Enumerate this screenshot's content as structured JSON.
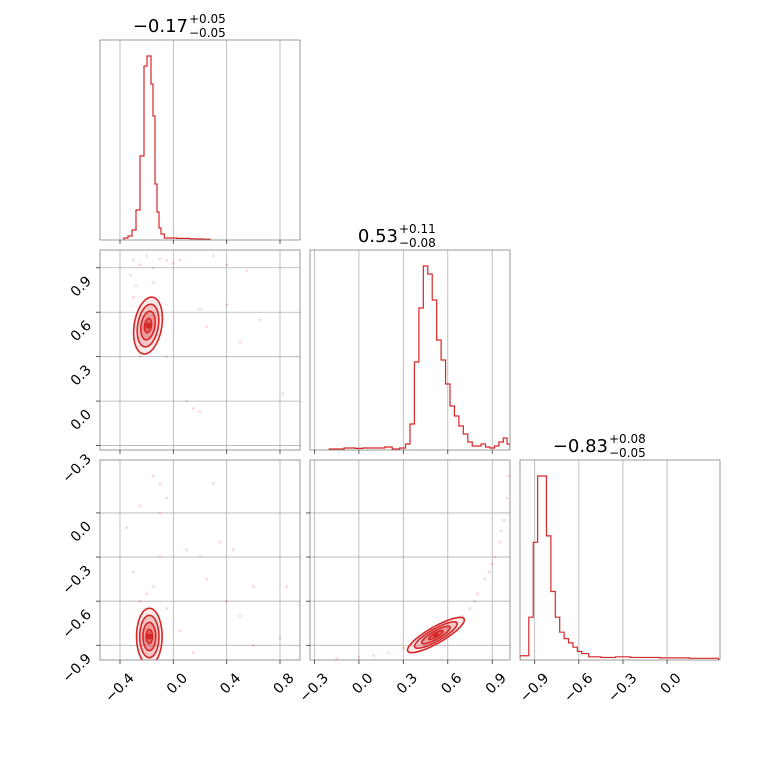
{
  "chart_data": {
    "type": "corner",
    "color": "#d62728",
    "grid": true,
    "parameters": [
      {
        "range": [
          -0.55,
          0.95
        ],
        "ticks": [
          -0.4,
          0.0,
          0.4,
          0.8
        ],
        "tick_labels": [
          "−0.4",
          "0.0",
          "0.4",
          "0.8"
        ],
        "title": {
          "median": "−0.17",
          "plus": "+0.05",
          "minus": "−0.05"
        }
      },
      {
        "range": [
          -0.33,
          1.02
        ],
        "ticks": [
          -0.3,
          0.0,
          0.3,
          0.6,
          0.9
        ],
        "tick_labels": [
          "−0.3",
          "0.0",
          "0.3",
          "0.6",
          "0.9"
        ],
        "title": {
          "median": "0.53",
          "plus": "+0.11",
          "minus": "−0.08"
        }
      },
      {
        "range": [
          -1.0,
          0.36
        ],
        "ticks": [
          -0.9,
          -0.6,
          -0.3,
          0.0
        ],
        "tick_labels": [
          "−0.9",
          "−0.6",
          "−0.3",
          "0.0"
        ],
        "title": {
          "median": "−0.83",
          "plus": "+0.08",
          "minus": "−0.05"
        }
      }
    ],
    "histograms": [
      {
        "param": 0,
        "edges": [
          -0.55,
          0.95
        ],
        "x": [
          -0.355,
          -0.325,
          -0.295,
          -0.265,
          -0.235,
          -0.205,
          -0.19,
          -0.175,
          -0.16,
          -0.145,
          -0.13,
          -0.115,
          -0.1,
          -0.085,
          -0.05,
          0.0,
          0.05,
          0.1,
          0.15,
          0.2,
          0.25
        ],
        "values": [
          0.01,
          0.02,
          0.05,
          0.15,
          0.42,
          0.87,
          0.92,
          0.92,
          0.78,
          0.62,
          0.28,
          0.14,
          0.06,
          0.03,
          0.01,
          0.01,
          0.008,
          0.008,
          0.006,
          0.005,
          0.004
        ]
      },
      {
        "param": 1,
        "x": [
          -0.15,
          -0.05,
          0.0,
          0.05,
          0.1,
          0.15,
          0.2,
          0.25,
          0.3,
          0.33,
          0.36,
          0.39,
          0.42,
          0.45,
          0.48,
          0.51,
          0.54,
          0.57,
          0.6,
          0.63,
          0.66,
          0.69,
          0.72,
          0.75,
          0.78,
          0.81,
          0.84,
          0.87,
          0.9,
          0.93,
          0.96,
          0.99,
          1.01
        ],
        "values": [
          0.005,
          0.01,
          0.008,
          0.01,
          0.01,
          0.01,
          0.015,
          0.005,
          0.01,
          0.03,
          0.13,
          0.44,
          0.71,
          0.92,
          0.88,
          0.75,
          0.55,
          0.45,
          0.33,
          0.22,
          0.17,
          0.12,
          0.08,
          0.04,
          0.02,
          0.02,
          0.03,
          0.015,
          0.01,
          0.02,
          0.04,
          0.06,
          0.03
        ]
      },
      {
        "param": 2,
        "x": [
          -0.985,
          -0.955,
          -0.925,
          -0.895,
          -0.865,
          -0.835,
          -0.805,
          -0.775,
          -0.745,
          -0.715,
          -0.685,
          -0.655,
          -0.625,
          -0.595,
          -0.565,
          -0.5,
          -0.4,
          -0.3,
          -0.2,
          -0.1,
          0.0,
          0.1,
          0.2,
          0.3
        ],
        "values": [
          0.02,
          0.02,
          0.2,
          0.55,
          0.86,
          0.86,
          0.58,
          0.32,
          0.2,
          0.13,
          0.1,
          0.08,
          0.06,
          0.04,
          0.03,
          0.015,
          0.012,
          0.015,
          0.012,
          0.012,
          0.01,
          0.01,
          0.008,
          0.008
        ]
      }
    ],
    "pairs": [
      {
        "px": 0,
        "py": 1,
        "center": [
          -0.19,
          0.51
        ],
        "sigma": [
          0.045,
          0.08
        ],
        "rho": 0.25,
        "scatter": [
          [
            -0.3,
            0.95
          ],
          [
            -0.25,
            0.92
          ],
          [
            -0.2,
            0.98
          ],
          [
            -0.15,
            0.9
          ],
          [
            -0.32,
            0.85
          ],
          [
            -0.1,
            0.96
          ],
          [
            -0.28,
            0.78
          ],
          [
            -0.05,
            0.95
          ],
          [
            0.0,
            0.93
          ],
          [
            0.2,
            0.62
          ],
          [
            0.25,
            0.5
          ],
          [
            0.4,
            0.65
          ],
          [
            0.5,
            0.4
          ],
          [
            0.65,
            0.55
          ],
          [
            0.82,
            0.05
          ],
          [
            -0.25,
            0.3
          ],
          [
            -0.05,
            0.3
          ],
          [
            0.1,
            0.0
          ],
          [
            0.15,
            -0.05
          ],
          [
            0.2,
            -0.07
          ],
          [
            -0.3,
            0.7
          ],
          [
            -0.15,
            0.8
          ],
          [
            0.05,
            0.95
          ],
          [
            0.3,
            0.98
          ],
          [
            0.4,
            0.92
          ],
          [
            0.55,
            0.88
          ]
        ]
      },
      {
        "px": 0,
        "py": 2,
        "center": [
          -0.18,
          -0.84
        ],
        "sigma": [
          0.04,
          0.08
        ],
        "rho": 0.0,
        "scatter": [
          [
            -0.25,
            -0.6
          ],
          [
            -0.2,
            -0.55
          ],
          [
            -0.15,
            -0.5
          ],
          [
            -0.1,
            -0.3
          ],
          [
            -0.1,
            0.0
          ],
          [
            -0.1,
            0.2
          ],
          [
            -0.05,
            0.1
          ],
          [
            -0.15,
            0.25
          ],
          [
            0.1,
            -0.25
          ],
          [
            0.2,
            -0.3
          ],
          [
            0.3,
            0.2
          ],
          [
            0.35,
            -0.2
          ],
          [
            0.45,
            -0.25
          ],
          [
            0.4,
            -0.6
          ],
          [
            0.5,
            -0.7
          ],
          [
            0.6,
            -0.5
          ],
          [
            0.6,
            -0.9
          ],
          [
            0.85,
            -0.5
          ],
          [
            0.8,
            -0.85
          ],
          [
            -0.3,
            -0.4
          ],
          [
            -0.35,
            -0.1
          ],
          [
            -0.25,
            0.05
          ],
          [
            0.05,
            -0.8
          ],
          [
            0.15,
            -0.95
          ],
          [
            -0.05,
            -0.65
          ],
          [
            0.25,
            -0.45
          ]
        ]
      },
      {
        "px": 1,
        "py": 2,
        "center": [
          0.52,
          -0.83
        ],
        "sigma": [
          0.08,
          0.05
        ],
        "rho": 0.85,
        "scatter": [
          [
            0.75,
            -0.65
          ],
          [
            0.8,
            -0.55
          ],
          [
            0.85,
            -0.45
          ],
          [
            0.9,
            -0.35
          ],
          [
            0.95,
            -0.2
          ],
          [
            0.98,
            -0.05
          ],
          [
            1.0,
            0.1
          ],
          [
            1.01,
            0.25
          ],
          [
            0.92,
            -0.3
          ],
          [
            0.3,
            -0.92
          ],
          [
            0.2,
            -0.95
          ],
          [
            0.1,
            -0.97
          ],
          [
            0.0,
            -0.98
          ],
          [
            -0.15,
            -0.99
          ],
          [
            0.35,
            -0.9
          ],
          [
            0.7,
            -0.7
          ],
          [
            0.78,
            -0.6
          ],
          [
            0.88,
            -0.4
          ],
          [
            0.96,
            -0.12
          ]
        ]
      }
    ]
  }
}
